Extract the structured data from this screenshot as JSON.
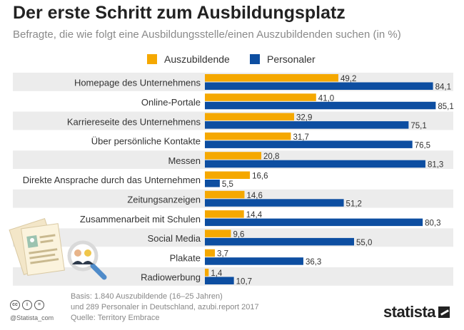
{
  "title": "Der erste Schritt zum Ausbildungsplatz",
  "subtitle": "Befragte, die wie folgt eine Ausbildungsstelle/einen Auszubildenden suchen (in %)",
  "colors": {
    "series_a": "#f5a800",
    "series_b": "#0d4ea1",
    "stripe": "#ececec"
  },
  "chart_data": {
    "type": "bar",
    "orientation": "horizontal",
    "categories": [
      "Homepage des Unternehmens",
      "Online-Portale",
      "Karriereseite des Unternehmens",
      "Über persönliche Kontakte",
      "Messen",
      "Direkte Ansprache durch das Unternehmen",
      "Zeitungsanzeigen",
      "Zusammenarbeit mit Schulen",
      "Social Media",
      "Plakate",
      "Radiowerbung"
    ],
    "series": [
      {
        "name": "Auszubildende",
        "values": [
          49.2,
          41.0,
          32.9,
          31.7,
          20.8,
          16.6,
          14.6,
          14.4,
          9.6,
          3.7,
          1.4
        ],
        "labels": [
          "49,2",
          "41,0",
          "32,9",
          "31,7",
          "20,8",
          "16,6",
          "14,6",
          "14,4",
          "9,6",
          "3,7",
          "1,4"
        ]
      },
      {
        "name": "Personaler",
        "values": [
          84.1,
          85.1,
          75.1,
          76.5,
          81.3,
          5.5,
          51.2,
          80.3,
          55.0,
          36.3,
          10.7
        ],
        "labels": [
          "84,1",
          "85,1",
          "75,1",
          "76,5",
          "81,3",
          "5,5",
          "51,2",
          "80,3",
          "55,0",
          "36,3",
          "10,7"
        ]
      }
    ],
    "xlim": [
      0,
      100
    ],
    "legend_position": "top-center",
    "grid": false
  },
  "footer": {
    "basis_line1": "Basis: 1.840 Auszubildende (16–25 Jahren)",
    "basis_line2": "und 289 Personaler in Deutschland, azubi.report 2017",
    "source": "Quelle: Territory Embrace",
    "handle": "@Statista_com",
    "brand": "statista",
    "cc_icons": [
      "cc",
      "i",
      "="
    ]
  }
}
